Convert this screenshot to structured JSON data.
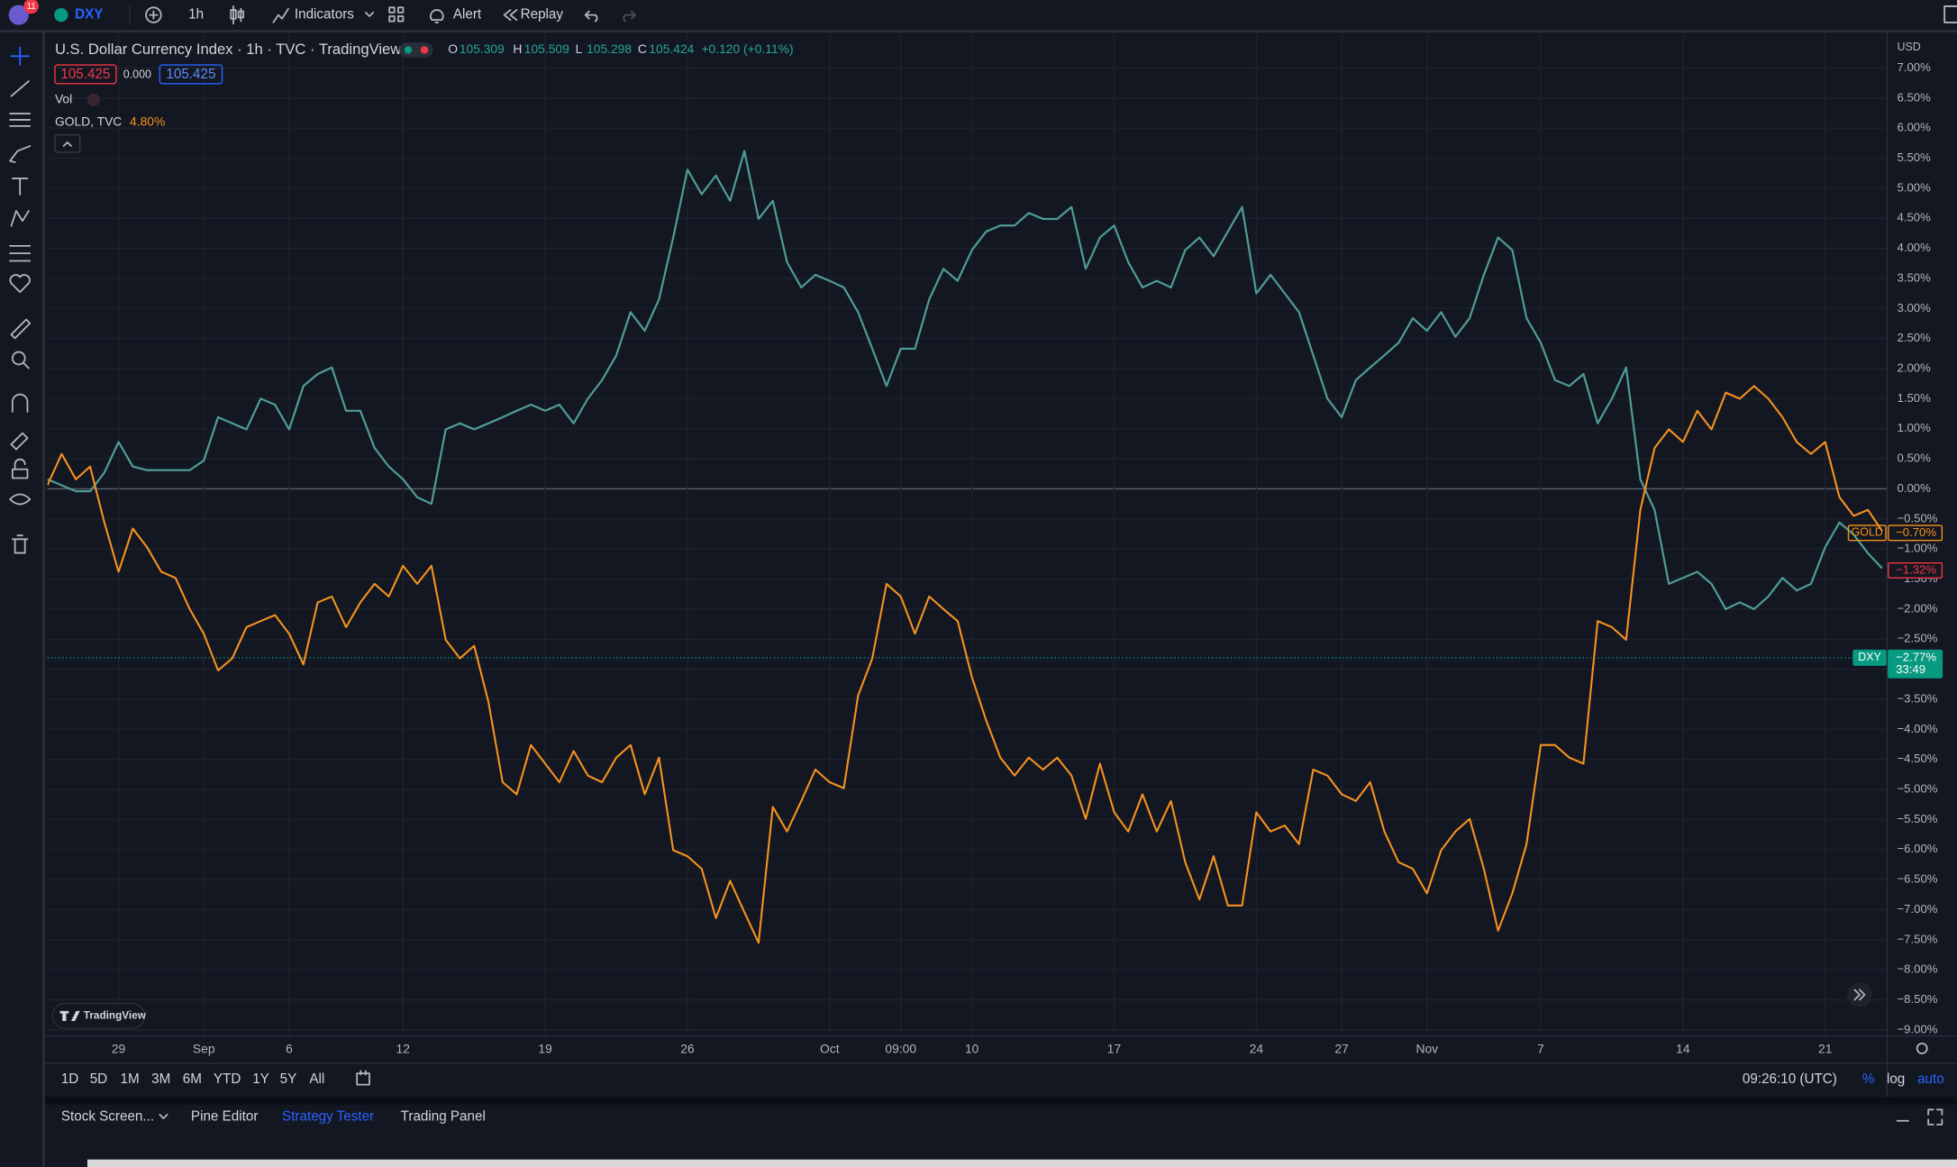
{
  "toolbar": {
    "notifications": "11",
    "symbol": "DXY",
    "interval": "1h",
    "indicators": "Indicators",
    "alert": "Alert",
    "replay": "Replay"
  },
  "legend": {
    "ohlc": [
      {
        "label": "O",
        "value": "105.309"
      },
      {
        "label": "H",
        "value": "105.509"
      },
      {
        "label": "L",
        "value": "105.298"
      },
      {
        "label": "C",
        "value": "105.424"
      }
    ],
    "change": "+0.120 (+0.11%)",
    "price_boxes": [
      "105.425",
      "0.000",
      "105.425"
    ],
    "vol": "Vol",
    "compare_name": "GOLD, TVC",
    "compare_change": "4.80%"
  },
  "chart_data": {
    "type": "line",
    "title": "U.S. Dollar Currency Index · 1h · TVC · TradingView",
    "y_axis_label": "USD",
    "categories": [
      null,
      null,
      null,
      null,
      null,
      "29",
      null,
      null,
      null,
      null,
      null,
      "Sep",
      null,
      null,
      null,
      null,
      null,
      "6",
      null,
      null,
      null,
      null,
      null,
      null,
      null,
      "12",
      null,
      null,
      null,
      null,
      null,
      null,
      null,
      null,
      null,
      "19",
      null,
      null,
      null,
      null,
      null,
      null,
      null,
      null,
      null,
      "26",
      null,
      null,
      null,
      null,
      null,
      null,
      null,
      null,
      null,
      "Oct",
      null,
      null,
      null,
      null,
      "09:00",
      null,
      null,
      null,
      null,
      "10",
      null,
      null,
      null,
      null,
      null,
      null,
      null,
      null,
      null,
      "17",
      null,
      null,
      null,
      null,
      null,
      null,
      null,
      null,
      null,
      "24",
      null,
      null,
      null,
      null,
      null,
      "27",
      null,
      null,
      null,
      null,
      null,
      "Nov",
      null,
      null,
      null,
      null,
      null,
      null,
      null,
      "7",
      null,
      null,
      null,
      null,
      null,
      null,
      null,
      null,
      null,
      "14",
      null,
      null,
      null,
      null,
      null,
      null,
      null,
      null,
      null,
      "21",
      null,
      null,
      null,
      null
    ],
    "series": [
      {
        "name": "DXY",
        "color": "#4f9d92",
        "values": [
          0.16,
          0.06,
          -0.04,
          -0.04,
          0.27,
          0.78,
          0.37,
          0.31,
          0.31,
          0.31,
          0.31,
          0.47,
          1.19,
          1.09,
          0.99,
          1.5,
          1.4,
          0.99,
          1.71,
          1.91,
          2.02,
          1.3,
          1.3,
          0.68,
          0.37,
          0.16,
          -0.14,
          -0.25,
          0.99,
          1.09,
          0.99,
          1.09,
          1.19,
          1.3,
          1.4,
          1.3,
          1.4,
          1.09,
          1.5,
          1.81,
          2.22,
          2.94,
          2.63,
          3.15,
          4.18,
          5.31,
          4.9,
          5.21,
          4.79,
          5.62,
          4.49,
          4.79,
          3.77,
          3.35,
          3.56,
          3.46,
          3.35,
          2.94,
          2.33,
          1.71,
          2.33,
          2.33,
          3.15,
          3.66,
          3.46,
          3.97,
          4.28,
          4.38,
          4.38,
          4.59,
          4.49,
          4.49,
          4.69,
          3.66,
          4.18,
          4.38,
          3.77,
          3.35,
          3.46,
          3.35,
          3.97,
          4.18,
          3.87,
          4.28,
          4.69,
          3.25,
          3.56,
          3.25,
          2.94,
          2.22,
          1.5,
          1.19,
          1.81,
          2.02,
          2.22,
          2.43,
          2.84,
          2.63,
          2.94,
          2.53,
          2.84,
          3.56,
          4.18,
          3.97,
          2.84,
          2.43,
          1.81,
          1.71,
          1.91,
          1.09,
          1.5,
          2.02,
          0.16,
          -0.35,
          -1.58,
          -1.48,
          -1.38,
          -1.58,
          -2.0,
          -1.89,
          -2.0,
          -1.79,
          -1.48,
          -1.69,
          -1.58,
          -0.97,
          -0.56,
          -0.76,
          -1.07,
          -1.32
        ]
      },
      {
        "name": "GOLD, TVC",
        "color": "#f7931e",
        "values": [
          0.06,
          0.58,
          0.16,
          0.37,
          -0.56,
          -1.38,
          -0.66,
          -0.97,
          -1.38,
          -1.48,
          -2.0,
          -2.41,
          -3.02,
          -2.82,
          -2.3,
          -2.2,
          -2.1,
          -2.41,
          -2.92,
          -1.89,
          -1.79,
          -2.3,
          -1.89,
          -1.58,
          -1.79,
          -1.28,
          -1.58,
          -1.28,
          -2.51,
          -2.82,
          -2.61,
          -3.54,
          -4.88,
          -5.08,
          -4.26,
          -4.57,
          -4.88,
          -4.36,
          -4.77,
          -4.88,
          -4.47,
          -4.26,
          -5.08,
          -4.47,
          -6.01,
          -6.11,
          -6.32,
          -7.14,
          -6.52,
          -7.04,
          -7.55,
          -5.29,
          -5.7,
          -5.19,
          -4.67,
          -4.88,
          -4.98,
          -3.44,
          -2.82,
          -1.58,
          -1.79,
          -2.41,
          -1.79,
          -2.0,
          -2.2,
          -3.13,
          -3.85,
          -4.47,
          -4.77,
          -4.47,
          -4.67,
          -4.47,
          -4.77,
          -5.49,
          -4.57,
          -5.38,
          -5.7,
          -5.08,
          -5.7,
          -5.19,
          -6.21,
          -6.83,
          -6.11,
          -6.93,
          -6.93,
          -5.38,
          -5.7,
          -5.6,
          -5.91,
          -4.67,
          -4.77,
          -5.08,
          -5.19,
          -4.88,
          -5.7,
          -6.21,
          -6.32,
          -6.73,
          -6.01,
          -5.7,
          -5.49,
          -6.32,
          -7.35,
          -6.73,
          -5.91,
          -4.26,
          -4.26,
          -4.47,
          -4.57,
          -2.2,
          -2.3,
          -2.51,
          -0.35,
          0.68,
          0.99,
          0.78,
          1.3,
          0.99,
          1.6,
          1.5,
          1.71,
          1.5,
          1.19,
          0.78,
          0.58,
          0.78,
          -0.14,
          -0.45,
          -0.35,
          -0.7
        ]
      }
    ],
    "ylim": [
      -9.1,
      7.55
    ],
    "yticks": [
      {
        "value": 7,
        "label": "7.00%"
      },
      {
        "value": 6.5,
        "label": "6.50%"
      },
      {
        "value": 6,
        "label": "6.00%"
      },
      {
        "value": 5.5,
        "label": "5.50%"
      },
      {
        "value": 5,
        "label": "5.00%"
      },
      {
        "value": 4.5,
        "label": "4.50%"
      },
      {
        "value": 4,
        "label": "4.00%"
      },
      {
        "value": 3.5,
        "label": "3.50%"
      },
      {
        "value": 3,
        "label": "3.00%"
      },
      {
        "value": 2.5,
        "label": "2.50%"
      },
      {
        "value": 2,
        "label": "2.00%"
      },
      {
        "value": 1.5,
        "label": "1.50%"
      },
      {
        "value": 1,
        "label": "1.00%"
      },
      {
        "value": 0.5,
        "label": "0.50%"
      },
      {
        "value": 0,
        "label": "0.00%"
      },
      {
        "value": -0.5,
        "label": "−0.50%"
      },
      {
        "value": -1,
        "label": "−1.00%"
      },
      {
        "value": -1.5,
        "label": "−1.50%"
      },
      {
        "value": -2,
        "label": "−2.00%"
      },
      {
        "value": -2.5,
        "label": "−2.50%"
      },
      {
        "value": -3,
        "label": "−3.00%"
      },
      {
        "value": -3.5,
        "label": "−3.50%"
      },
      {
        "value": -4,
        "label": "−4.00%"
      },
      {
        "value": -4.5,
        "label": "−4.50%"
      },
      {
        "value": -5,
        "label": "−5.00%"
      },
      {
        "value": -5.5,
        "label": "−5.50%"
      },
      {
        "value": -6,
        "label": "−6.00%"
      },
      {
        "value": -6.5,
        "label": "−6.50%"
      },
      {
        "value": -7,
        "label": "−7.00%"
      },
      {
        "value": -7.5,
        "label": "−7.50%"
      },
      {
        "value": -8,
        "label": "−8.00%"
      },
      {
        "value": -8.5,
        "label": "−8.50%"
      },
      {
        "value": -9,
        "label": "−9.00%"
      }
    ],
    "grid": true
  },
  "badges": [
    {
      "name": "GOLD",
      "value": "−0.70%"
    },
    {
      "value": "−1.32%"
    },
    {
      "name": "DXY",
      "value": "−2.77%",
      "timer": "33:49"
    }
  ],
  "watermark": "TradingView",
  "timeframes": [
    "1D",
    "5D",
    "1M",
    "3M",
    "6M",
    "YTD",
    "1Y",
    "5Y",
    "All"
  ],
  "clock": "09:26:10 (UTC)",
  "scale_options": [
    "%",
    "log",
    "auto"
  ],
  "bottom_tabs": [
    "Stock Screen...",
    "Pine Editor",
    "Strategy Tester",
    "Trading Panel"
  ]
}
